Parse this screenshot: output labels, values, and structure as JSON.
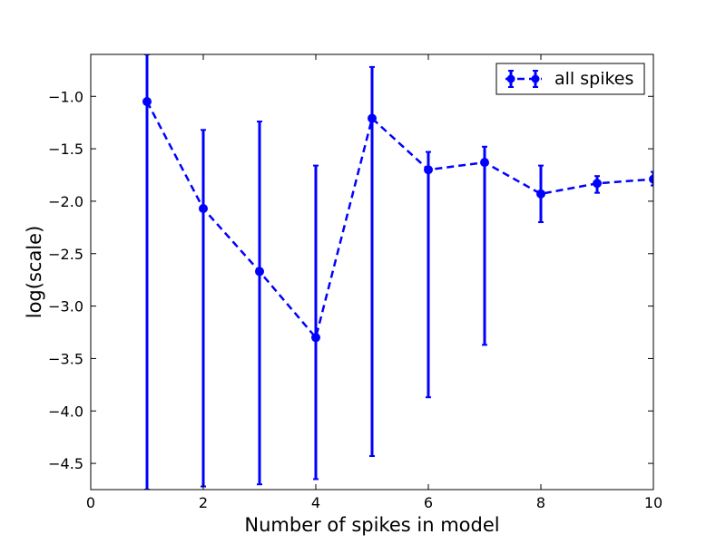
{
  "chart_data": {
    "type": "line",
    "xlabel": "Number of spikes in model",
    "ylabel": "log(scale)",
    "xlim": [
      0,
      10
    ],
    "ylim": [
      -4.75,
      -0.6
    ],
    "x_ticks": [
      0,
      2,
      4,
      6,
      8,
      10
    ],
    "x_tick_labels": [
      "0",
      "2",
      "4",
      "6",
      "8",
      "10"
    ],
    "y_ticks": [
      -1.0,
      -1.5,
      -2.0,
      -2.5,
      -3.0,
      -3.5,
      -4.0,
      -4.5
    ],
    "y_tick_labels": [
      "−1.0",
      "−1.5",
      "−2.0",
      "−2.5",
      "−3.0",
      "−3.5",
      "−4.0",
      "−4.5"
    ],
    "grid": false,
    "legend": {
      "position": "top-right"
    },
    "series": [
      {
        "name": "all spikes",
        "color": "#0000ff",
        "line_style": "dashed",
        "marker": "circle",
        "x": [
          1,
          2,
          3,
          4,
          5,
          6,
          7,
          8,
          9,
          10
        ],
        "y": [
          -1.05,
          -2.07,
          -2.67,
          -3.3,
          -1.21,
          -1.7,
          -1.63,
          -1.93,
          -1.83,
          -1.79
        ],
        "err_lower": [
          -4.75,
          -4.72,
          -4.7,
          -4.65,
          -4.43,
          -3.87,
          -3.37,
          -2.2,
          -1.92,
          -1.85
        ],
        "err_upper": [
          -0.6,
          -1.32,
          -1.24,
          -1.66,
          -0.72,
          -1.53,
          -1.48,
          -1.66,
          -1.76,
          -1.72
        ]
      }
    ]
  }
}
